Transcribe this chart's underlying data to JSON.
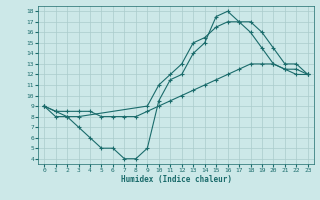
{
  "xlabel": "Humidex (Indice chaleur)",
  "xlim": [
    -0.5,
    23.5
  ],
  "ylim": [
    3.5,
    18.5
  ],
  "xticks": [
    0,
    1,
    2,
    3,
    4,
    5,
    6,
    7,
    8,
    9,
    10,
    11,
    12,
    13,
    14,
    15,
    16,
    17,
    18,
    19,
    20,
    21,
    22,
    23
  ],
  "yticks": [
    4,
    5,
    6,
    7,
    8,
    9,
    10,
    11,
    12,
    13,
    14,
    15,
    16,
    17,
    18
  ],
  "bg_color": "#cce8e8",
  "line_color": "#1a6b6b",
  "grid_color": "#aacccc",
  "lines": [
    {
      "x": [
        0,
        1,
        2,
        3,
        4,
        5,
        6,
        7,
        8,
        9,
        10,
        11,
        12,
        13,
        14,
        15,
        16,
        17,
        18,
        19,
        20,
        21,
        22,
        23
      ],
      "y": [
        9,
        8,
        8,
        7,
        6,
        5,
        5,
        4,
        4,
        5,
        9.5,
        11.5,
        12,
        14,
        15,
        17.5,
        18,
        17,
        16,
        14.5,
        13,
        12.5,
        12.5,
        12
      ]
    },
    {
      "x": [
        0,
        1,
        2,
        3,
        4,
        5,
        6,
        7,
        8,
        9,
        10,
        11,
        12,
        13,
        14,
        15,
        16,
        17,
        18,
        19,
        20,
        21,
        22,
        23
      ],
      "y": [
        9,
        8.5,
        8.5,
        8.5,
        8.5,
        8,
        8,
        8,
        8,
        8.5,
        9,
        9.5,
        10,
        10.5,
        11,
        11.5,
        12,
        12.5,
        13,
        13,
        13,
        12.5,
        12,
        12
      ]
    },
    {
      "x": [
        0,
        1,
        2,
        3,
        9,
        10,
        11,
        12,
        13,
        14,
        15,
        16,
        17,
        18,
        19,
        20,
        21,
        22,
        23
      ],
      "y": [
        9,
        8.5,
        8,
        8,
        9,
        11,
        12,
        13,
        15,
        15.5,
        16.5,
        17,
        17,
        17,
        16,
        14.5,
        13,
        13,
        12
      ]
    }
  ]
}
